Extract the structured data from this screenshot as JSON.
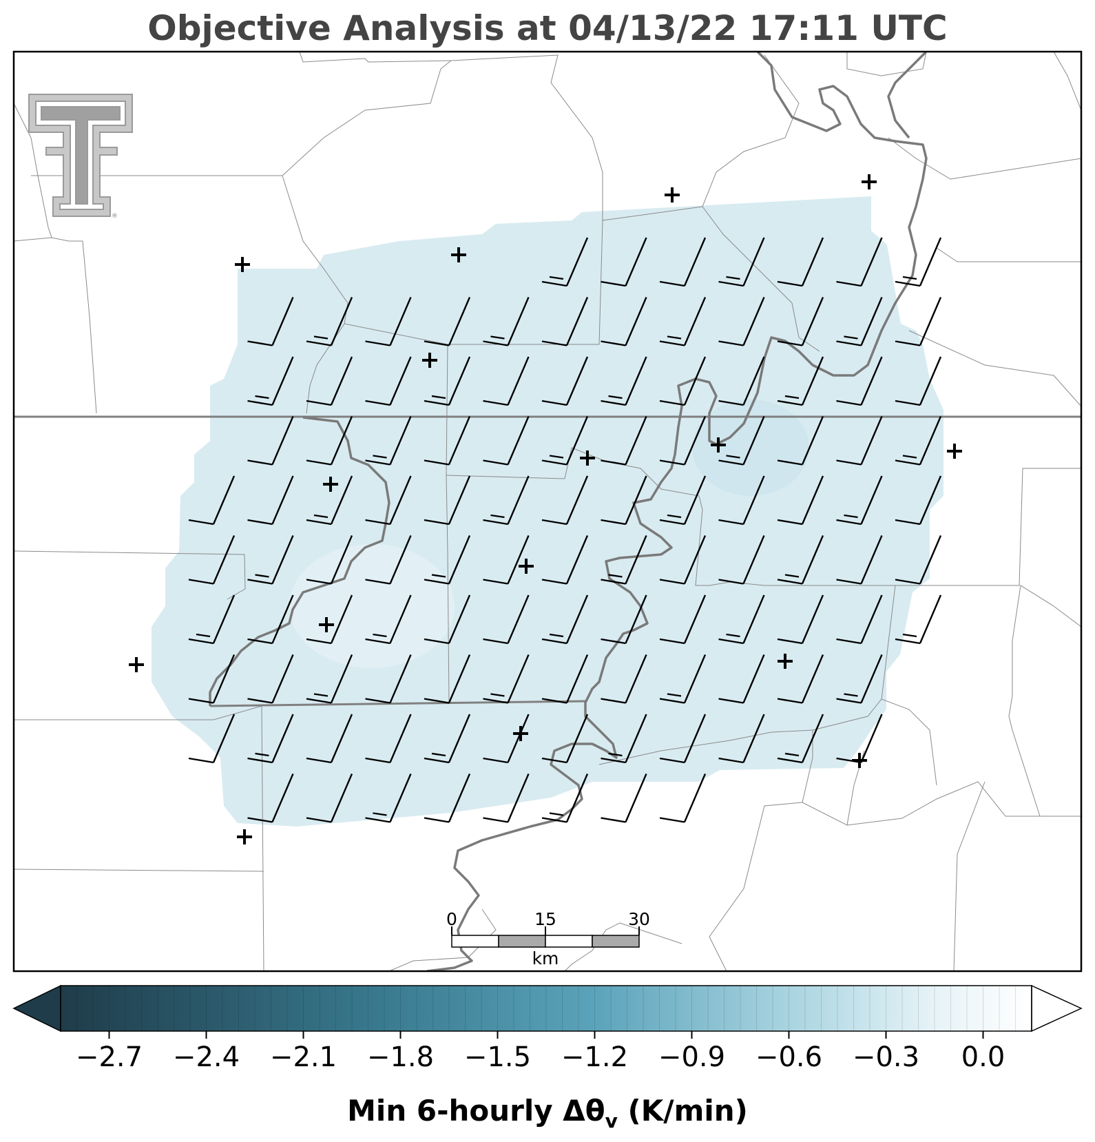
{
  "title": "Objective Analysis at 04/13/22 17:11 UTC",
  "colorbar": {
    "label_main": "Min 6-hourly Δθ",
    "label_sub": "v",
    "label_units": " (K/min)",
    "ticks": [
      "−2.7",
      "−2.4",
      "−2.1",
      "−1.8",
      "−1.5",
      "−1.2",
      "−0.9",
      "−0.6",
      "−0.3",
      "0.0"
    ],
    "tick_values": [
      -2.7,
      -2.4,
      -2.1,
      -1.8,
      -1.5,
      -1.2,
      -0.9,
      -0.6,
      -0.3,
      0.0
    ],
    "range": [
      -2.85,
      0.15
    ],
    "colors": {
      "min": "#1f3c4a",
      "mid": "#4a95ad",
      "light": "#a9d4e0",
      "max": "#ffffff"
    },
    "extend": "both"
  },
  "map": {
    "field_value_range": [
      -0.75,
      -0.35
    ],
    "field_color": "#d8ebf1",
    "wind_barbs": "uniform southwest winds across station grid",
    "station_marker": "+",
    "logo": "Texas Tech Double T",
    "scale_bar": {
      "labels": [
        "0",
        "15",
        "30"
      ],
      "unit": "km"
    }
  }
}
